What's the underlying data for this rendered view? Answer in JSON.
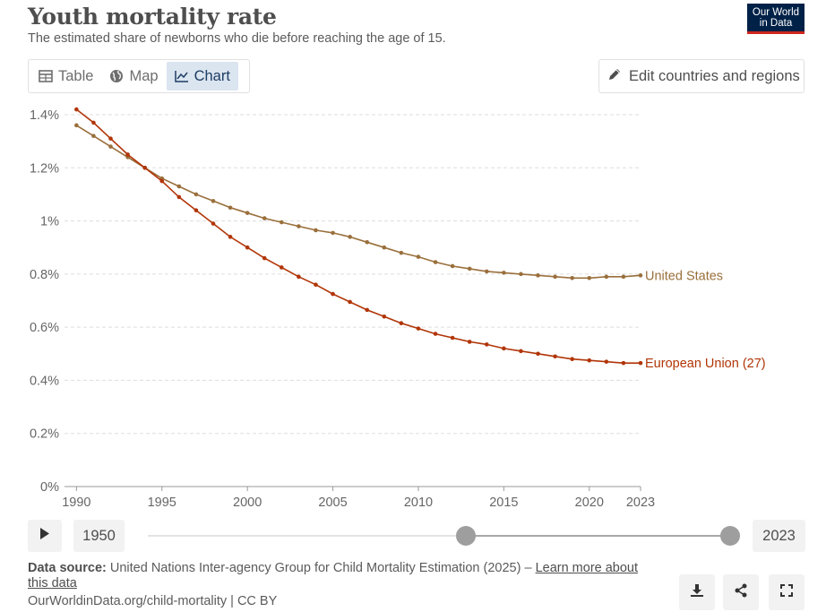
{
  "header": {
    "title": "Youth mortality rate",
    "subtitle": "The estimated share of newborns who die before reaching the age of 15.",
    "logo_line1": "Our World",
    "logo_line2": "in Data"
  },
  "tabs": [
    {
      "label": "Table",
      "icon": "table-icon",
      "active": false
    },
    {
      "label": "Map",
      "icon": "globe-icon",
      "active": false
    },
    {
      "label": "Chart",
      "icon": "line-chart-icon",
      "active": true
    }
  ],
  "edit_button": {
    "label": "Edit countries and regions",
    "icon": "pencil-icon"
  },
  "chart_data": {
    "type": "line",
    "title": "",
    "xlabel": "",
    "ylabel": "",
    "x_ticks": [
      1990,
      1995,
      2000,
      2005,
      2010,
      2015,
      2020,
      2023
    ],
    "y_ticks": [
      "0%",
      "0.2%",
      "0.4%",
      "0.6%",
      "0.8%",
      "1%",
      "1.2%",
      "1.4%"
    ],
    "ylim": [
      0,
      1.4
    ],
    "xlim": [
      1989,
      2024
    ],
    "grid": "horizontal dashed",
    "legend": "line-end labels",
    "x": [
      1990,
      1991,
      1992,
      1993,
      1994,
      1995,
      1996,
      1997,
      1998,
      1999,
      2000,
      2001,
      2002,
      2003,
      2004,
      2005,
      2006,
      2007,
      2008,
      2009,
      2010,
      2011,
      2012,
      2013,
      2014,
      2015,
      2016,
      2017,
      2018,
      2019,
      2020,
      2021,
      2022,
      2023
    ],
    "series": [
      {
        "name": "United States",
        "color": "#9a6f3c",
        "values": [
          1.36,
          1.32,
          1.28,
          1.24,
          1.2,
          1.16,
          1.13,
          1.1,
          1.075,
          1.05,
          1.03,
          1.01,
          0.995,
          0.98,
          0.965,
          0.955,
          0.94,
          0.92,
          0.9,
          0.88,
          0.865,
          0.845,
          0.83,
          0.82,
          0.81,
          0.805,
          0.8,
          0.795,
          0.79,
          0.785,
          0.785,
          0.79,
          0.79,
          0.795
        ]
      },
      {
        "name": "European Union (27)",
        "color": "#b13507",
        "values": [
          1.42,
          1.37,
          1.31,
          1.25,
          1.2,
          1.15,
          1.09,
          1.04,
          0.99,
          0.94,
          0.9,
          0.86,
          0.825,
          0.79,
          0.76,
          0.725,
          0.695,
          0.665,
          0.64,
          0.615,
          0.595,
          0.575,
          0.56,
          0.545,
          0.535,
          0.52,
          0.51,
          0.5,
          0.49,
          0.48,
          0.475,
          0.47,
          0.465,
          0.465
        ]
      }
    ]
  },
  "timeline": {
    "start_year": "1950",
    "end_year": "2023",
    "range_min": 1950,
    "range_max": 2023,
    "selected_start": 1990,
    "selected_end": 2023
  },
  "footer": {
    "source_label": "Data source:",
    "source_text": "United Nations Inter-agency Group for Child Mortality Estimation (2025) –",
    "learn_more": "Learn more about this data",
    "url_text": "OurWorldinData.org/child-mortality | CC BY"
  },
  "actions": [
    {
      "name": "download-button",
      "icon": "download-icon"
    },
    {
      "name": "share-button",
      "icon": "share-icon"
    },
    {
      "name": "fullscreen-button",
      "icon": "fullscreen-icon"
    }
  ]
}
